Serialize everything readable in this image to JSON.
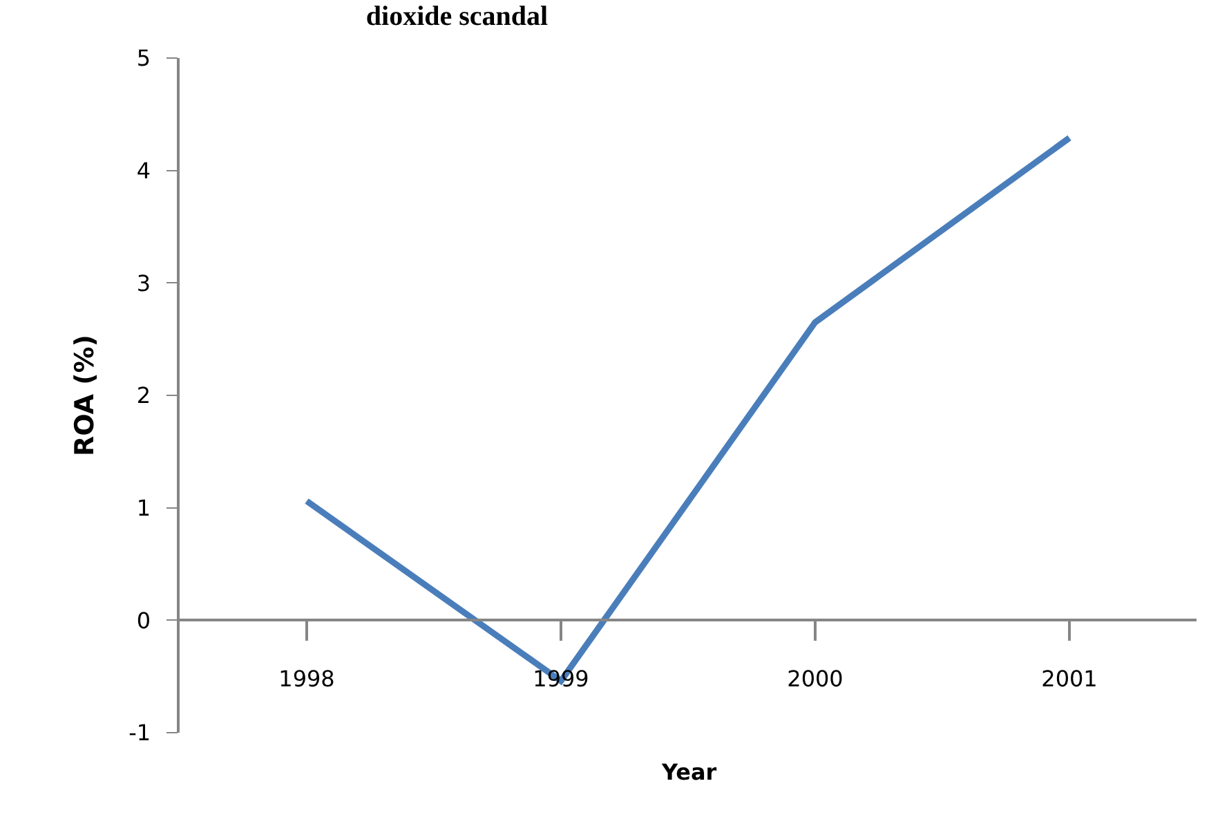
{
  "chart_data": {
    "type": "line",
    "title": "dioxide scandal",
    "xlabel": "Year",
    "ylabel": "ROA (%)",
    "categories": [
      "1998",
      "1999",
      "2000",
      "2001"
    ],
    "series": [
      {
        "color": "#4a7ebb",
        "values": [
          1.06,
          -0.54,
          2.65,
          4.29
        ]
      }
    ],
    "ylim": [
      -1,
      5
    ],
    "yticks": [
      -1,
      0,
      1,
      2,
      3,
      4,
      5
    ],
    "marker": "none",
    "line_style": "solid"
  }
}
